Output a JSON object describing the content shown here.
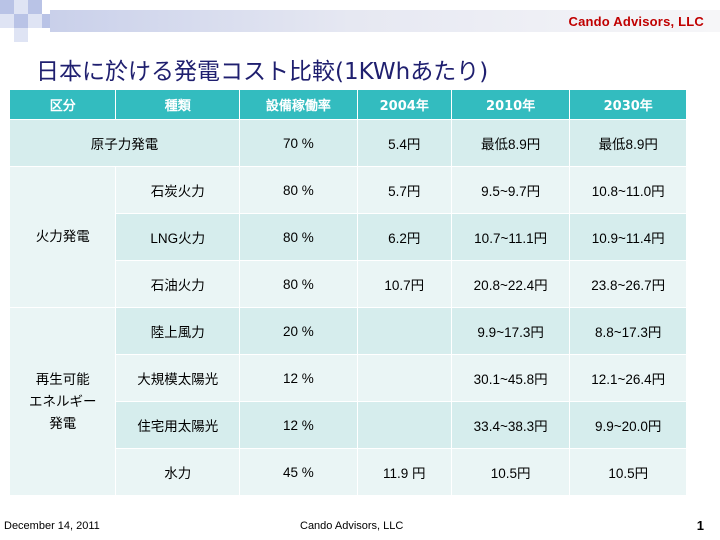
{
  "header": {
    "company": "Cando Advisors, LLC",
    "title": "日本に於ける発電コスト比較(1KWhあたり)"
  },
  "table": {
    "headers": [
      "区分",
      "種類",
      "設備稼働率",
      "2004年",
      "2010年",
      "2030年"
    ],
    "nuclear": {
      "label": "原子力発電",
      "rate": "70 %",
      "y2004": "5.4円",
      "y2010": "最低8.9円",
      "y2030": "最低8.9円"
    },
    "thermal": {
      "label": "火力発電",
      "rows": [
        {
          "type": "石炭火力",
          "rate": "80 %",
          "y2004": "5.7円",
          "y2010": "9.5~9.7円",
          "y2030": "10.8~11.0円"
        },
        {
          "type": "LNG火力",
          "rate": "80 %",
          "y2004": "6.2円",
          "y2010": "10.7~11.1円",
          "y2030": "10.9~11.4円"
        },
        {
          "type": "石油火力",
          "rate": "80 %",
          "y2004": "10.7円",
          "y2010": "20.8~22.4円",
          "y2030": "23.8~26.7円"
        }
      ]
    },
    "renewable": {
      "label_lines": [
        "再生可能",
        "エネルギー",
        "発電"
      ],
      "rows": [
        {
          "type": "陸上風力",
          "rate": "20 %",
          "y2004": "",
          "y2010": "9.9~17.3円",
          "y2030": "8.8~17.3円"
        },
        {
          "type": "大規模太陽光",
          "rate": "12 %",
          "y2004": "",
          "y2010": "30.1~45.8円",
          "y2030": "12.1~26.4円"
        },
        {
          "type": "住宅用太陽光",
          "rate": "12 %",
          "y2004": "",
          "y2010": "33.4~38.3円",
          "y2030": "9.9~20.0円"
        },
        {
          "type": "水力",
          "rate": "45 %",
          "y2004": "11.9 円",
          "y2010": "10.5円",
          "y2030": "10.5円"
        }
      ]
    }
  },
  "footer": {
    "date": "December 14, 2011",
    "company": "Cando Advisors, LLC",
    "page": "1"
  },
  "colors": {
    "header_fill": "#33bcbf",
    "band_fill": "#d6eded",
    "alt_fill": "#eaf5f5",
    "title_color": "#1f1f6f",
    "brand_red": "#c00000"
  }
}
